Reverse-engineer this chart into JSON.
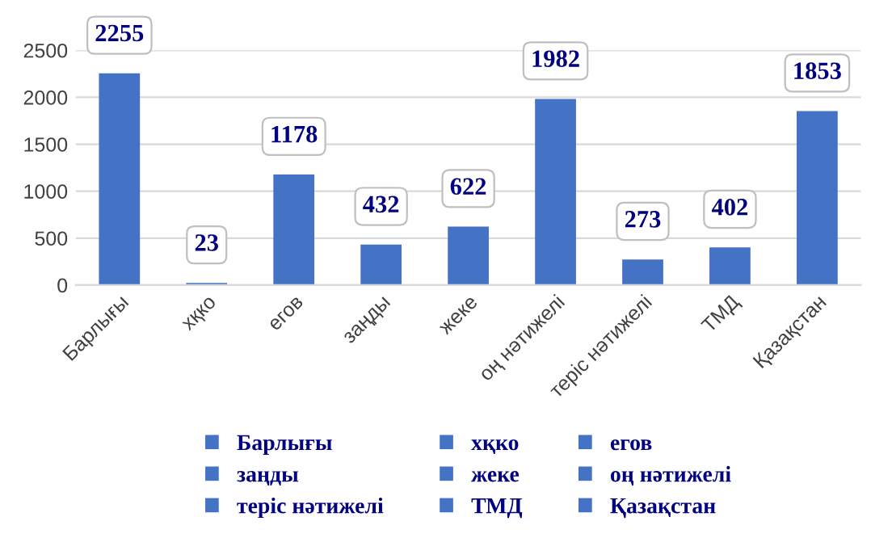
{
  "chart_data": {
    "type": "bar",
    "categories": [
      "Барлығы",
      "хқко",
      "егов",
      "заңды",
      "жеке",
      "оң нәтижелі",
      "теріс нәтижелі",
      "ТМД",
      "Қазақстан"
    ],
    "series": [
      {
        "name": "Барлығы",
        "color": "#4472c4",
        "values": [
          2255,
          null,
          null,
          null,
          null,
          null,
          null,
          null,
          null
        ]
      },
      {
        "name": "хқко",
        "color": "#4472c4",
        "values": [
          null,
          23,
          null,
          null,
          null,
          null,
          null,
          null,
          null
        ]
      },
      {
        "name": "егов",
        "color": "#4472c4",
        "values": [
          null,
          null,
          1178,
          null,
          null,
          null,
          null,
          null,
          null
        ]
      },
      {
        "name": "заңды",
        "color": "#4472c4",
        "values": [
          null,
          null,
          null,
          432,
          null,
          null,
          null,
          null,
          null
        ]
      },
      {
        "name": "жеке",
        "color": "#4472c4",
        "values": [
          null,
          null,
          null,
          null,
          622,
          null,
          null,
          null,
          null
        ]
      },
      {
        "name": "оң нәтижелі",
        "color": "#4472c4",
        "values": [
          null,
          null,
          null,
          null,
          null,
          1982,
          null,
          null,
          null
        ]
      },
      {
        "name": "теріс нәтижелі",
        "color": "#4472c4",
        "values": [
          null,
          null,
          null,
          null,
          null,
          null,
          273,
          null,
          null
        ]
      },
      {
        "name": "ТМД",
        "color": "#4472c4",
        "values": [
          null,
          null,
          null,
          null,
          null,
          null,
          null,
          402,
          null
        ]
      },
      {
        "name": "Қазақстан",
        "color": "#4472c4",
        "values": [
          null,
          null,
          null,
          null,
          null,
          null,
          null,
          null,
          1853
        ]
      }
    ],
    "ylim": [
      0,
      2500
    ],
    "yticks": [
      0,
      500,
      1000,
      1500,
      2000,
      2500
    ],
    "grid": "y",
    "legend": "bottom",
    "data_labels": true
  }
}
